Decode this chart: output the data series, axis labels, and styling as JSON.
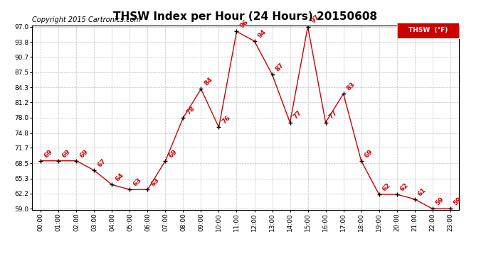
{
  "title": "THSW Index per Hour (24 Hours) 20150608",
  "copyright": "Copyright 2015 Cartronics.com",
  "legend_label": "THSW  (°F)",
  "hours": [
    0,
    1,
    2,
    3,
    4,
    5,
    6,
    7,
    8,
    9,
    10,
    11,
    12,
    13,
    14,
    15,
    16,
    17,
    18,
    19,
    20,
    21,
    22,
    23
  ],
  "values": [
    69,
    69,
    69,
    67,
    64,
    63,
    63,
    69,
    78,
    84,
    76,
    96,
    94,
    87,
    77,
    97,
    77,
    83,
    69,
    62,
    62,
    61,
    59,
    59
  ],
  "line_color": "#cc0000",
  "marker_color": "#000000",
  "label_color": "#cc0000",
  "background_color": "#ffffff",
  "grid_color": "#c0c0c0",
  "ylim_min": 59.0,
  "ylim_max": 97.0,
  "yticks": [
    59.0,
    62.2,
    65.3,
    68.5,
    71.7,
    74.8,
    78.0,
    81.2,
    84.3,
    87.5,
    90.7,
    93.8,
    97.0
  ],
  "title_fontsize": 11,
  "copyright_fontsize": 7,
  "label_fontsize": 6.5,
  "tick_fontsize": 6.5
}
